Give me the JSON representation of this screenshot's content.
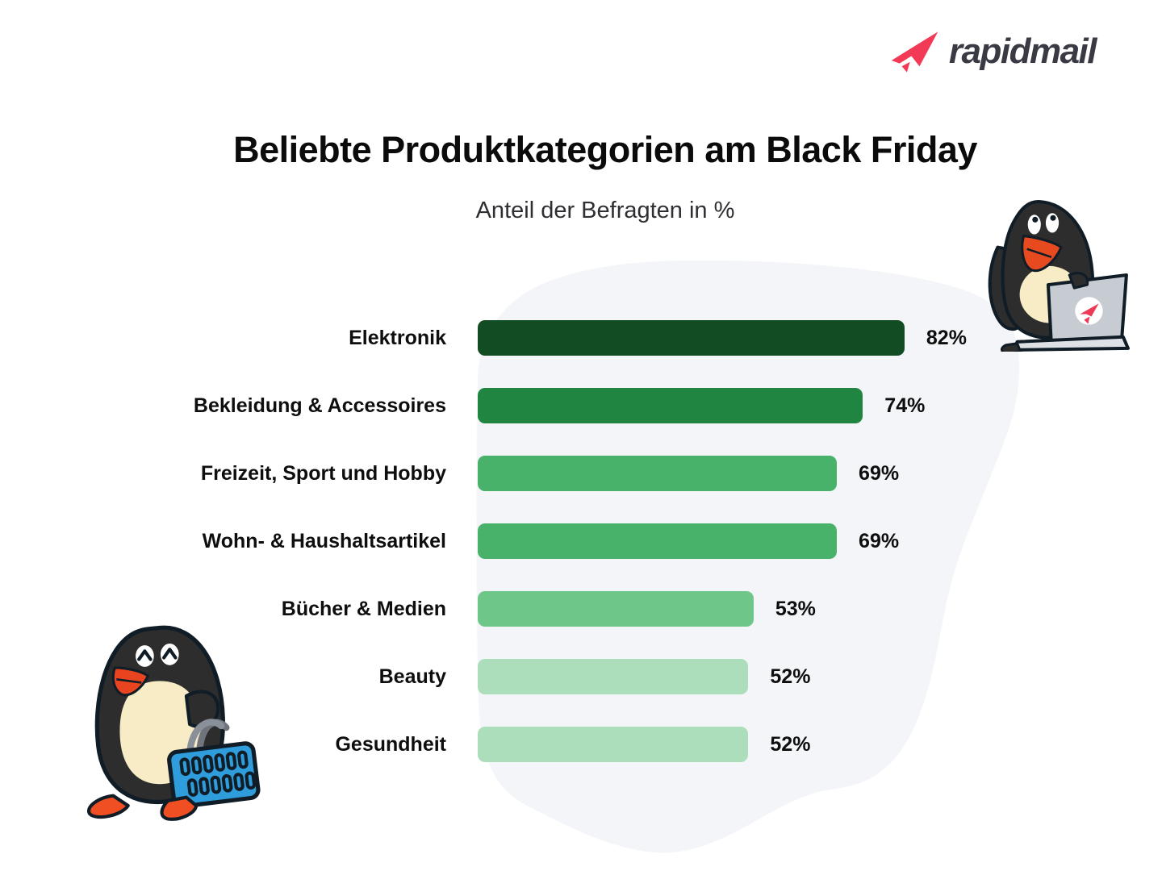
{
  "logo": {
    "brand": "rapidmail"
  },
  "header": {
    "title": "Beliebte Produktkategorien am Black Friday",
    "subtitle": "Anteil der Befragten in %"
  },
  "chart_data": {
    "type": "bar",
    "orientation": "horizontal",
    "title": "Beliebte Produktkategorien am Black Friday",
    "subtitle": "Anteil der Befragten in %",
    "unit": "%",
    "xlim": [
      0,
      100
    ],
    "grid": false,
    "legend": false,
    "sorted": "descending",
    "categories": [
      "Elektronik",
      "Bekleidung & Accessoires",
      "Freizeit, Sport und Hobby",
      "Wohn- & Haushaltsartikel",
      "Bücher & Medien",
      "Beauty",
      "Gesundheit"
    ],
    "values": [
      82,
      74,
      69,
      69,
      53,
      52,
      52
    ],
    "value_labels": [
      "82%",
      "74%",
      "69%",
      "69%",
      "53%",
      "52%",
      "52%"
    ],
    "bar_colors": [
      "#114c23",
      "#1f8540",
      "#49b26a",
      "#49b26a",
      "#6ec688",
      "#addebb",
      "#addebb"
    ]
  },
  "colors": {
    "brand_red": "#f23a56",
    "logo_text": "#3a3a44",
    "title_text": "#0b0b0b",
    "subtitle_text": "#2e2e33",
    "label_text": "#0e0e0e",
    "blob_background": "#f3f5f8",
    "page_background": "#ffffff"
  },
  "decorations": {
    "top_right": "penguin-mascot-with-laptop",
    "bottom_left": "penguin-mascot-with-shopping-basket"
  }
}
